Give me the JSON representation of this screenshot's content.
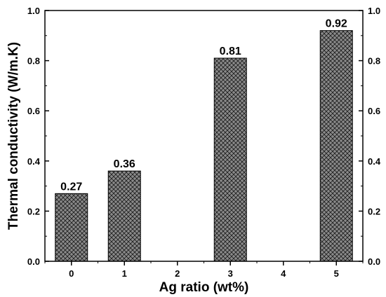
{
  "chart_data": {
    "type": "bar",
    "title": "",
    "xlabel": "Ag ratio (wt%)",
    "ylabel": "Thermal conductivity (W/m.K)",
    "x_ticks": [
      "0",
      "1",
      "2",
      "3",
      "4",
      "5"
    ],
    "xlim": [
      -0.5,
      5.5
    ],
    "ylim": [
      0,
      1.0
    ],
    "y_ticks": [
      "0.0",
      "0.2",
      "0.4",
      "0.6",
      "0.8",
      "1.0"
    ],
    "right_y_ticks": [
      "0.0",
      "0.2",
      "0.4",
      "0.6",
      "0.8",
      "1.0"
    ],
    "bars": [
      {
        "x": 0,
        "value": 0.27,
        "label": "0.27"
      },
      {
        "x": 1,
        "value": 0.36,
        "label": "0.36"
      },
      {
        "x": 3,
        "value": 0.81,
        "label": "0.81"
      },
      {
        "x": 5,
        "value": 0.92,
        "label": "0.92"
      }
    ],
    "bar_fill": "#8a8a8a",
    "bar_pattern": "crosshatch",
    "grid": false,
    "legend": "none"
  }
}
